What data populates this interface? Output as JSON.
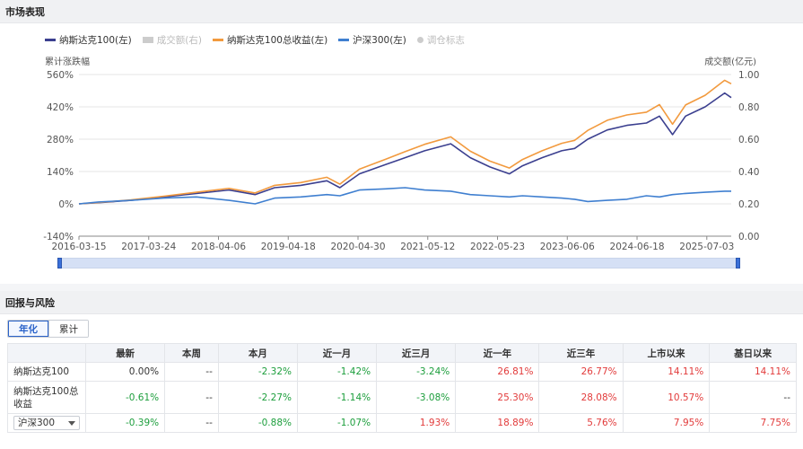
{
  "market": {
    "title": "市场表现",
    "legend": [
      {
        "label": "纳斯达克100(左)",
        "color": "#3b3f8f",
        "kind": "line",
        "enabled": true
      },
      {
        "label": "成交额(右)",
        "color": "#cccccc",
        "kind": "rect",
        "enabled": false
      },
      {
        "label": "纳斯达克100总收益(左)",
        "color": "#f29a3e",
        "kind": "line",
        "enabled": true
      },
      {
        "label": "沪深300(左)",
        "color": "#3f7fd0",
        "kind": "line",
        "enabled": true
      },
      {
        "label": "调仓标志",
        "color": "#cccccc",
        "kind": "dot",
        "enabled": false
      }
    ],
    "left_axis_title": "累计涨跌幅",
    "right_axis_title": "成交额(亿元)"
  },
  "chart_data": {
    "type": "line",
    "x_tick_labels": [
      "2016-03-15",
      "2017-03-24",
      "2018-04-06",
      "2019-04-18",
      "2020-04-30",
      "2021-05-12",
      "2022-05-23",
      "2023-06-06",
      "2024-06-18",
      "2025-07-03"
    ],
    "y_left_ticks": [
      "560%",
      "420%",
      "280%",
      "140%",
      "0%",
      "-140%"
    ],
    "y_left_range": [
      -140,
      560
    ],
    "y_right_ticks": [
      "1.00",
      "0.80",
      "0.60",
      "0.40",
      "0.20",
      "0.00"
    ],
    "y_right_range": [
      0,
      1.0
    ],
    "x_years": [
      2016.2,
      2016.5,
      2017.0,
      2017.5,
      2018.0,
      2018.5,
      2018.9,
      2019.2,
      2019.6,
      2020.0,
      2020.2,
      2020.5,
      2020.9,
      2021.2,
      2021.5,
      2021.9,
      2022.2,
      2022.5,
      2022.8,
      2023.0,
      2023.3,
      2023.6,
      2023.8,
      2024.0,
      2024.3,
      2024.6,
      2024.9,
      2025.1,
      2025.3,
      2025.5,
      2025.8,
      2026.1,
      2026.2
    ],
    "series": [
      {
        "name": "纳斯达克100(左)",
        "color": "#3b3f8f",
        "values": [
          0,
          5,
          15,
          30,
          45,
          60,
          40,
          70,
          80,
          100,
          70,
          130,
          170,
          200,
          230,
          260,
          200,
          160,
          130,
          165,
          200,
          230,
          240,
          280,
          320,
          340,
          350,
          380,
          300,
          380,
          420,
          480,
          460
        ]
      },
      {
        "name": "纳斯达克100总收益(左)",
        "color": "#f29a3e",
        "values": [
          0,
          6,
          17,
          33,
          50,
          67,
          47,
          80,
          92,
          115,
          85,
          150,
          193,
          226,
          258,
          290,
          228,
          185,
          155,
          192,
          230,
          262,
          275,
          318,
          362,
          385,
          397,
          430,
          345,
          428,
          470,
          535,
          520
        ]
      },
      {
        "name": "沪深300(左)",
        "color": "#3f7fd0",
        "values": [
          0,
          8,
          15,
          25,
          30,
          15,
          0,
          25,
          30,
          40,
          35,
          60,
          65,
          70,
          60,
          55,
          40,
          35,
          30,
          35,
          30,
          25,
          20,
          10,
          15,
          20,
          35,
          30,
          40,
          45,
          50,
          55,
          55
        ]
      }
    ]
  },
  "returns": {
    "title": "回报与风险",
    "tabs": [
      {
        "label": "年化",
        "active": true
      },
      {
        "label": "累计",
        "active": false
      }
    ],
    "columns": [
      "最新",
      "本周",
      "本月",
      "近一月",
      "近三月",
      "近一年",
      "近三年",
      "上市以来",
      "基日以来"
    ],
    "rows": [
      {
        "name": "纳斯达克100",
        "values": [
          "0.00%",
          "--",
          "-2.32%",
          "-1.42%",
          "-3.24%",
          "26.81%",
          "26.77%",
          "14.11%",
          "14.11%"
        ],
        "signs": [
          "flat",
          "flat",
          "neg",
          "neg",
          "neg",
          "pos",
          "pos",
          "pos",
          "pos"
        ]
      },
      {
        "name": "纳斯达克100总收益",
        "values": [
          "-0.61%",
          "--",
          "-2.27%",
          "-1.14%",
          "-3.08%",
          "25.30%",
          "28.08%",
          "10.57%",
          "--"
        ],
        "signs": [
          "neg",
          "flat",
          "neg",
          "neg",
          "neg",
          "pos",
          "pos",
          "pos",
          "flat"
        ]
      },
      {
        "name": "沪深300",
        "values": [
          "-0.39%",
          "--",
          "-0.88%",
          "-1.07%",
          "1.93%",
          "18.89%",
          "5.76%",
          "7.95%",
          "7.75%"
        ],
        "signs": [
          "neg",
          "flat",
          "neg",
          "neg",
          "pos",
          "pos",
          "pos",
          "pos",
          "pos"
        ]
      }
    ]
  }
}
